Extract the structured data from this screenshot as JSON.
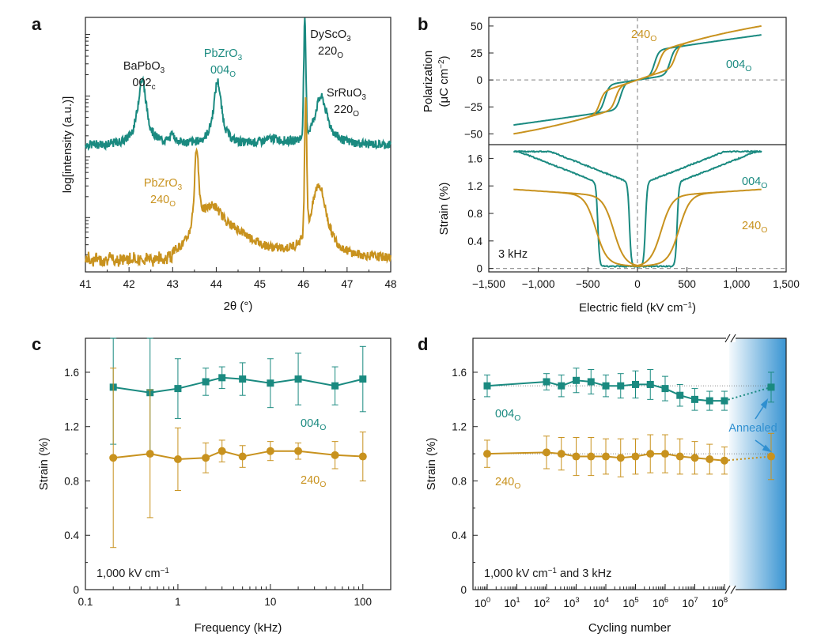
{
  "colors": {
    "teal": "#1a8a80",
    "gold": "#c8921e",
    "annealed": "#2f8fd0",
    "zero": "#999999"
  },
  "panel_letters": [
    "a",
    "b",
    "c",
    "d"
  ],
  "chart_data": [
    {
      "panel": "a",
      "type": "line",
      "xlabel": "2θ (°)",
      "ylabel": "log[intensity (a.u.)]",
      "xlim": [
        41,
        48
      ],
      "yscale": "log",
      "xticks": [
        "41",
        "42",
        "43",
        "44",
        "45",
        "46",
        "47",
        "48"
      ],
      "series": [
        {
          "color": "teal",
          "peaks": [
            {
              "x": 42.3,
              "h": 0.45
            },
            {
              "x": 44.03,
              "h": 0.55
            },
            {
              "x": 46.02,
              "h": 0.85
            },
            {
              "x": 46.4,
              "h": 0.28
            }
          ],
          "baseline": 0.1
        },
        {
          "color": "gold",
          "peaks": [
            {
              "x": 43.55,
              "h": 0.58
            },
            {
              "x": 46.05,
              "h": 0.95
            },
            {
              "x": 46.35,
              "h": 0.4
            }
          ],
          "baseline": 0.0
        }
      ],
      "annotations": [
        {
          "text": "BaPbO",
          "sub": "3",
          "line2": "002",
          "line2sub": "c",
          "color": "dark",
          "x": 42.2
        },
        {
          "text": "PbZrO",
          "sub": "3",
          "line2": "004",
          "line2sub": "O",
          "color": "teal",
          "x": 44.05
        },
        {
          "text": "DyScO",
          "sub": "3",
          "line2": "220",
          "line2sub": "O",
          "color": "dark",
          "x": 46.7
        },
        {
          "text": "SrRuO",
          "sub": "3",
          "line2": "220",
          "line2sub": "O",
          "color": "dark",
          "x": 47.3
        },
        {
          "text": "PbZrO",
          "sub": "3",
          "line2": "240",
          "line2sub": "O",
          "color": "gold",
          "x": 42.3
        }
      ]
    },
    {
      "panel": "b",
      "type": "line",
      "xlabel": "Electric field (kV cm",
      "xlabel_sup": "−1",
      "xlabel_end": ")",
      "xlim": [
        -1500,
        1500
      ],
      "xticks": [
        "−1,500",
        "−1,000",
        "−500",
        "0",
        "500",
        "1,000",
        "1,500"
      ],
      "top": {
        "ylabel_line1": "Polarization",
        "ylabel_line2": "(μC cm",
        "ylabel_sup": "−2",
        "ylabel_end": ")",
        "ylim": [
          -60,
          58
        ],
        "yticks": [
          "50",
          "25",
          "0",
          "−25",
          "−50"
        ],
        "labels": [
          {
            "text": "240",
            "sub": "O",
            "color": "gold"
          },
          {
            "text": "004",
            "sub": "O",
            "color": "teal"
          }
        ],
        "series": [
          {
            "name": "004O",
            "color": "teal",
            "Pmax": 42,
            "Ec": 250,
            "Pjump": 25
          },
          {
            "name": "240O",
            "color": "gold",
            "Pmax": 52,
            "Ec": 300,
            "Pjump": 20
          }
        ]
      },
      "bottom": {
        "ylabel": "Strain (%)",
        "ylim": [
          -0.05,
          1.8
        ],
        "yticks": [
          "1.6",
          "1.2",
          "0.8",
          "0.4",
          "0"
        ],
        "labels": [
          {
            "text": "004",
            "sub": "O",
            "color": "teal"
          },
          {
            "text": "240",
            "sub": "O",
            "color": "gold"
          }
        ],
        "condition": "3 kHz"
      }
    },
    {
      "panel": "c",
      "type": "line",
      "xlabel": "Frequency (kHz)",
      "ylabel": "Strain (%)",
      "xscale": "log",
      "xlim": [
        0.1,
        200
      ],
      "ylim": [
        0,
        1.85
      ],
      "xticks": [
        "0.1",
        "1",
        "10",
        "100"
      ],
      "yticks": [
        "0",
        "0.4",
        "0.8",
        "1.2",
        "1.6"
      ],
      "x": [
        0.2,
        0.5,
        1,
        2,
        3,
        5,
        10,
        20,
        50,
        100
      ],
      "series": [
        {
          "name": "004",
          "sub": "O",
          "color": "teal",
          "marker": "square",
          "values": [
            1.49,
            1.45,
            1.48,
            1.53,
            1.56,
            1.55,
            1.52,
            1.55,
            1.5,
            1.55
          ],
          "err": [
            0.42,
            0.45,
            0.22,
            0.1,
            0.08,
            0.12,
            0.18,
            0.19,
            0.14,
            0.24
          ]
        },
        {
          "name": "240",
          "sub": "O",
          "color": "gold",
          "marker": "circle",
          "values": [
            0.97,
            1.0,
            0.96,
            0.97,
            1.02,
            0.98,
            1.02,
            1.02,
            0.99,
            0.98
          ],
          "err": [
            0.66,
            0.47,
            0.23,
            0.11,
            0.08,
            0.08,
            0.07,
            0.06,
            0.1,
            0.18
          ]
        }
      ],
      "condition": "1,000 kV cm",
      "condition_sup": "−1"
    },
    {
      "panel": "d",
      "type": "line",
      "xlabel": "Cycling number",
      "ylabel": "Strain (%)",
      "xscale": "log",
      "ylim": [
        0,
        1.85
      ],
      "xticks_exp": [
        "0",
        "1",
        "2",
        "3",
        "4",
        "5",
        "6",
        "7",
        "8"
      ],
      "yticks": [
        "0",
        "0.4",
        "0.8",
        "1.2",
        "1.6"
      ],
      "x_exp": [
        0,
        2,
        2.5,
        3,
        3.5,
        4,
        4.5,
        5,
        5.5,
        6,
        6.5,
        7,
        7.5,
        8
      ],
      "series": [
        {
          "name": "004",
          "sub": "O",
          "color": "teal",
          "marker": "square",
          "values": [
            1.5,
            1.53,
            1.5,
            1.54,
            1.53,
            1.5,
            1.5,
            1.51,
            1.51,
            1.48,
            1.43,
            1.4,
            1.39,
            1.39
          ],
          "err": [
            0.08,
            0.06,
            0.08,
            0.09,
            0.09,
            0.08,
            0.09,
            0.1,
            0.11,
            0.09,
            0.08,
            0.08,
            0.07,
            0.07
          ],
          "annealed": 1.49,
          "annealed_err": 0.11
        },
        {
          "name": "240",
          "sub": "O",
          "color": "gold",
          "marker": "circle",
          "values": [
            1.0,
            1.01,
            1.0,
            0.98,
            0.98,
            0.98,
            0.97,
            0.98,
            1.0,
            1.0,
            0.98,
            0.97,
            0.96,
            0.95
          ],
          "err": [
            0.1,
            0.12,
            0.12,
            0.14,
            0.14,
            0.13,
            0.14,
            0.13,
            0.14,
            0.14,
            0.13,
            0.12,
            0.11,
            0.1
          ],
          "annealed": 0.98,
          "annealed_err": 0.17
        }
      ],
      "annealed_label": "Annealed",
      "condition": "1,000 kV cm",
      "condition_sup": "−1",
      "condition_end": " and 3 kHz"
    }
  ]
}
